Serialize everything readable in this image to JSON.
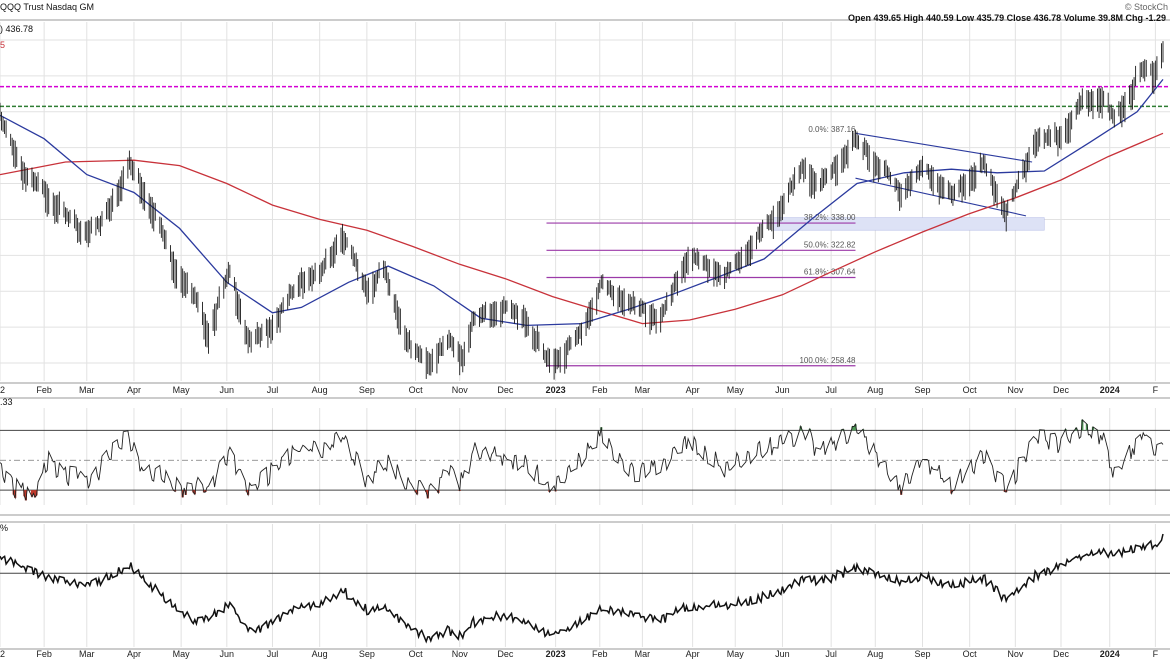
{
  "header": {
    "title": "QQQ Trust  Nasdaq GM",
    "brand": "© StockCh",
    "ohlc": "Open 439.65  High 440.59  Low 435.79  Close 436.78  Volume 39.8M  Chg -1.29",
    "last_label": ") 436.78",
    "frag_left": "5"
  },
  "panel_labels": {
    "rsi": ".33",
    "pct": "%"
  },
  "colors": {
    "price": "#1a1a1a",
    "ma50": "#2b3a9e",
    "ma200": "#c8323a",
    "resistance_magenta": "#d400d4",
    "resistance_green": "#2e7d32",
    "fib": "#9b3aa8",
    "channel": "#2b3a9e",
    "support_zone": "#dde2f6",
    "grid": "#e2e2e2",
    "rsi_over": "#4e9a56",
    "rsi_under": "#c0392b"
  },
  "chart_data": {
    "type": "line",
    "x_ticks": [
      "2",
      "Feb",
      "Mar",
      "Apr",
      "May",
      "Jun",
      "Jul",
      "Aug",
      "Sep",
      "Oct",
      "Nov",
      "Dec",
      "2023",
      "Feb",
      "Mar",
      "Apr",
      "May",
      "Jun",
      "Jul",
      "Aug",
      "Sep",
      "Oct",
      "Nov",
      "Dec",
      "2024",
      "F"
    ],
    "price_ylim": [
      250,
      450
    ],
    "series": [
      {
        "key": "price",
        "points": [
          [
            "2022-01-03",
            398
          ],
          [
            "2022-01-20",
            365
          ],
          [
            "2022-02-03",
            355
          ],
          [
            "2022-02-24",
            335
          ],
          [
            "2022-03-10",
            338
          ],
          [
            "2022-03-29",
            372
          ],
          [
            "2022-04-12",
            350
          ],
          [
            "2022-04-28",
            315
          ],
          [
            "2022-05-12",
            295
          ],
          [
            "2022-05-20",
            278
          ],
          [
            "2022-06-03",
            312
          ],
          [
            "2022-06-16",
            272
          ],
          [
            "2022-07-01",
            282
          ],
          [
            "2022-07-20",
            308
          ],
          [
            "2022-08-01",
            310
          ],
          [
            "2022-08-16",
            333
          ],
          [
            "2022-09-01",
            302
          ],
          [
            "2022-09-12",
            313
          ],
          [
            "2022-09-30",
            268
          ],
          [
            "2022-10-13",
            262
          ],
          [
            "2022-10-24",
            273
          ],
          [
            "2022-11-03",
            265
          ],
          [
            "2022-11-10",
            285
          ],
          [
            "2022-11-30",
            292
          ],
          [
            "2022-12-13",
            287
          ],
          [
            "2022-12-28",
            263
          ],
          [
            "2023-01-05",
            264
          ],
          [
            "2023-01-19",
            277
          ],
          [
            "2023-02-02",
            305
          ],
          [
            "2023-02-23",
            293
          ],
          [
            "2023-03-13",
            286
          ],
          [
            "2023-03-31",
            320
          ],
          [
            "2023-04-25",
            310
          ],
          [
            "2023-05-12",
            327
          ],
          [
            "2023-05-31",
            348
          ],
          [
            "2023-06-15",
            370
          ],
          [
            "2023-06-26",
            360
          ],
          [
            "2023-07-19",
            385
          ],
          [
            "2023-08-18",
            357
          ],
          [
            "2023-09-01",
            370
          ],
          [
            "2023-09-21",
            354
          ],
          [
            "2023-10-11",
            372
          ],
          [
            "2023-10-26",
            344
          ],
          [
            "2023-11-14",
            385
          ],
          [
            "2023-12-01",
            387
          ],
          [
            "2023-12-14",
            405
          ],
          [
            "2023-12-28",
            410
          ],
          [
            "2024-01-05",
            396
          ],
          [
            "2024-01-24",
            425
          ],
          [
            "2024-02-01",
            423
          ],
          [
            "2024-02-06",
            436.78
          ]
        ]
      },
      {
        "key": "ma50",
        "points": [
          [
            "2022-01-03",
            398
          ],
          [
            "2022-02-01",
            385
          ],
          [
            "2022-03-01",
            365
          ],
          [
            "2022-04-01",
            355
          ],
          [
            "2022-05-01",
            335
          ],
          [
            "2022-06-01",
            305
          ],
          [
            "2022-07-01",
            288
          ],
          [
            "2022-07-20",
            291
          ],
          [
            "2022-08-20",
            305
          ],
          [
            "2022-09-15",
            314
          ],
          [
            "2022-10-15",
            303
          ],
          [
            "2022-11-15",
            285
          ],
          [
            "2022-12-15",
            281
          ],
          [
            "2023-01-20",
            282
          ],
          [
            "2023-02-20",
            290
          ],
          [
            "2023-03-20",
            298
          ],
          [
            "2023-04-20",
            308
          ],
          [
            "2023-05-20",
            318
          ],
          [
            "2023-06-20",
            340
          ],
          [
            "2023-07-20",
            360
          ],
          [
            "2023-08-20",
            366
          ],
          [
            "2023-09-20",
            368
          ],
          [
            "2023-10-20",
            366
          ],
          [
            "2023-11-20",
            367
          ],
          [
            "2023-12-20",
            383
          ],
          [
            "2024-01-20",
            400
          ],
          [
            "2024-02-06",
            418
          ]
        ]
      },
      {
        "key": "ma200",
        "points": [
          [
            "2022-01-03",
            365
          ],
          [
            "2022-02-15",
            372
          ],
          [
            "2022-04-01",
            373
          ],
          [
            "2022-05-01",
            370
          ],
          [
            "2022-06-01",
            360
          ],
          [
            "2022-07-01",
            348
          ],
          [
            "2022-08-01",
            340
          ],
          [
            "2022-09-01",
            334
          ],
          [
            "2022-10-01",
            325
          ],
          [
            "2022-11-01",
            315
          ],
          [
            "2022-12-01",
            307
          ],
          [
            "2023-01-01",
            297
          ],
          [
            "2023-02-01",
            289
          ],
          [
            "2023-03-01",
            282
          ],
          [
            "2023-04-01",
            284
          ],
          [
            "2023-05-01",
            290
          ],
          [
            "2023-06-01",
            298
          ],
          [
            "2023-07-01",
            310
          ],
          [
            "2023-08-01",
            322
          ],
          [
            "2023-09-01",
            333
          ],
          [
            "2023-10-01",
            343
          ],
          [
            "2023-11-01",
            352
          ],
          [
            "2023-12-01",
            362
          ],
          [
            "2024-01-01",
            375
          ],
          [
            "2024-02-06",
            388
          ]
        ]
      }
    ],
    "resistance_lines": [
      {
        "color_key": "resistance_magenta",
        "y": 414
      },
      {
        "color_key": "resistance_green",
        "y": 403
      }
    ],
    "fibonacci": {
      "x_range": [
        "2022-12-28",
        "2023-07-19"
      ],
      "levels": [
        {
          "label": "0.0%: 387.16",
          "y": 387.16
        },
        {
          "label": "38.2%: 338.00",
          "y": 338.0
        },
        {
          "label": "50.0%: 322.82",
          "y": 322.82
        },
        {
          "label": "61.8%: 307.64",
          "y": 307.64
        },
        {
          "label": "100.0%: 258.48",
          "y": 258.48
        }
      ]
    },
    "channel": [
      {
        "from": [
          "2023-07-19",
          388
        ],
        "to": [
          "2023-11-12",
          372
        ]
      },
      {
        "from": [
          "2023-07-19",
          363
        ],
        "to": [
          "2023-11-08",
          342
        ]
      }
    ],
    "support_zone": {
      "x_range": [
        "2023-05-26",
        "2023-11-20"
      ],
      "y_range": [
        334,
        341
      ]
    },
    "rsi": {
      "ylim": [
        20,
        85
      ],
      "levels": [
        30,
        50,
        70
      ],
      "points": [
        [
          "2022-01-03",
          48
        ],
        [
          "2022-01-14",
          34
        ],
        [
          "2022-01-24",
          28
        ],
        [
          "2022-02-04",
          55
        ],
        [
          "2022-02-14",
          42
        ],
        [
          "2022-02-24",
          45
        ],
        [
          "2022-03-04",
          38
        ],
        [
          "2022-03-18",
          62
        ],
        [
          "2022-03-29",
          68
        ],
        [
          "2022-04-08",
          45
        ],
        [
          "2022-04-20",
          44
        ],
        [
          "2022-04-28",
          35
        ],
        [
          "2022-05-12",
          36
        ],
        [
          "2022-05-20",
          35
        ],
        [
          "2022-06-03",
          56
        ],
        [
          "2022-06-16",
          33
        ],
        [
          "2022-07-01",
          46
        ],
        [
          "2022-07-20",
          63
        ],
        [
          "2022-08-01",
          60
        ],
        [
          "2022-08-16",
          70
        ],
        [
          "2022-09-01",
          40
        ],
        [
          "2022-09-12",
          54
        ],
        [
          "2022-09-30",
          35
        ],
        [
          "2022-10-13",
          32
        ],
        [
          "2022-10-24",
          46
        ],
        [
          "2022-11-03",
          38
        ],
        [
          "2022-11-10",
          60
        ],
        [
          "2022-11-30",
          56
        ],
        [
          "2022-12-13",
          52
        ],
        [
          "2022-12-28",
          38
        ],
        [
          "2023-01-05",
          40
        ],
        [
          "2023-01-19",
          55
        ],
        [
          "2023-02-02",
          70
        ],
        [
          "2023-02-23",
          44
        ],
        [
          "2023-03-13",
          48
        ],
        [
          "2023-03-31",
          68
        ],
        [
          "2023-04-25",
          48
        ],
        [
          "2023-05-12",
          58
        ],
        [
          "2023-05-31",
          65
        ],
        [
          "2023-06-15",
          73
        ],
        [
          "2023-06-26",
          58
        ],
        [
          "2023-07-19",
          74
        ],
        [
          "2023-08-18",
          36
        ],
        [
          "2023-09-01",
          56
        ],
        [
          "2023-09-21",
          36
        ],
        [
          "2023-10-11",
          58
        ],
        [
          "2023-10-26",
          34
        ],
        [
          "2023-11-14",
          68
        ],
        [
          "2023-12-01",
          65
        ],
        [
          "2023-12-14",
          76
        ],
        [
          "2023-12-28",
          70
        ],
        [
          "2024-01-05",
          44
        ],
        [
          "2024-01-24",
          72
        ],
        [
          "2024-02-01",
          60
        ],
        [
          "2024-02-06",
          66
        ]
      ]
    },
    "pct_ylim": [
      0,
      100
    ],
    "pct_level": 60,
    "pct_points": [
      [
        "2022-01-03",
        74
      ],
      [
        "2022-01-20",
        66
      ],
      [
        "2022-02-03",
        58
      ],
      [
        "2022-02-24",
        52
      ],
      [
        "2022-03-10",
        55
      ],
      [
        "2022-03-29",
        68
      ],
      [
        "2022-04-12",
        52
      ],
      [
        "2022-04-28",
        35
      ],
      [
        "2022-05-12",
        22
      ],
      [
        "2022-05-20",
        25
      ],
      [
        "2022-06-03",
        36
      ],
      [
        "2022-06-16",
        14
      ],
      [
        "2022-07-01",
        22
      ],
      [
        "2022-07-20",
        35
      ],
      [
        "2022-08-01",
        38
      ],
      [
        "2022-08-16",
        48
      ],
      [
        "2022-09-01",
        32
      ],
      [
        "2022-09-12",
        36
      ],
      [
        "2022-09-30",
        16
      ],
      [
        "2022-10-13",
        8
      ],
      [
        "2022-10-24",
        15
      ],
      [
        "2022-11-03",
        10
      ],
      [
        "2022-11-10",
        22
      ],
      [
        "2022-11-30",
        28
      ],
      [
        "2022-12-13",
        24
      ],
      [
        "2022-12-28",
        14
      ],
      [
        "2023-01-05",
        14
      ],
      [
        "2023-01-19",
        22
      ],
      [
        "2023-02-02",
        32
      ],
      [
        "2023-02-23",
        28
      ],
      [
        "2023-03-13",
        24
      ],
      [
        "2023-03-31",
        35
      ],
      [
        "2023-04-25",
        36
      ],
      [
        "2023-05-12",
        40
      ],
      [
        "2023-05-31",
        48
      ],
      [
        "2023-06-15",
        58
      ],
      [
        "2023-06-26",
        55
      ],
      [
        "2023-07-19",
        66
      ],
      [
        "2023-08-18",
        55
      ],
      [
        "2023-09-01",
        60
      ],
      [
        "2023-09-21",
        52
      ],
      [
        "2023-10-11",
        58
      ],
      [
        "2023-10-26",
        40
      ],
      [
        "2023-11-14",
        60
      ],
      [
        "2023-12-01",
        68
      ],
      [
        "2023-12-14",
        76
      ],
      [
        "2023-12-28",
        80
      ],
      [
        "2024-01-05",
        78
      ],
      [
        "2024-01-24",
        85
      ],
      [
        "2024-02-01",
        84
      ],
      [
        "2024-02-06",
        90
      ]
    ]
  }
}
